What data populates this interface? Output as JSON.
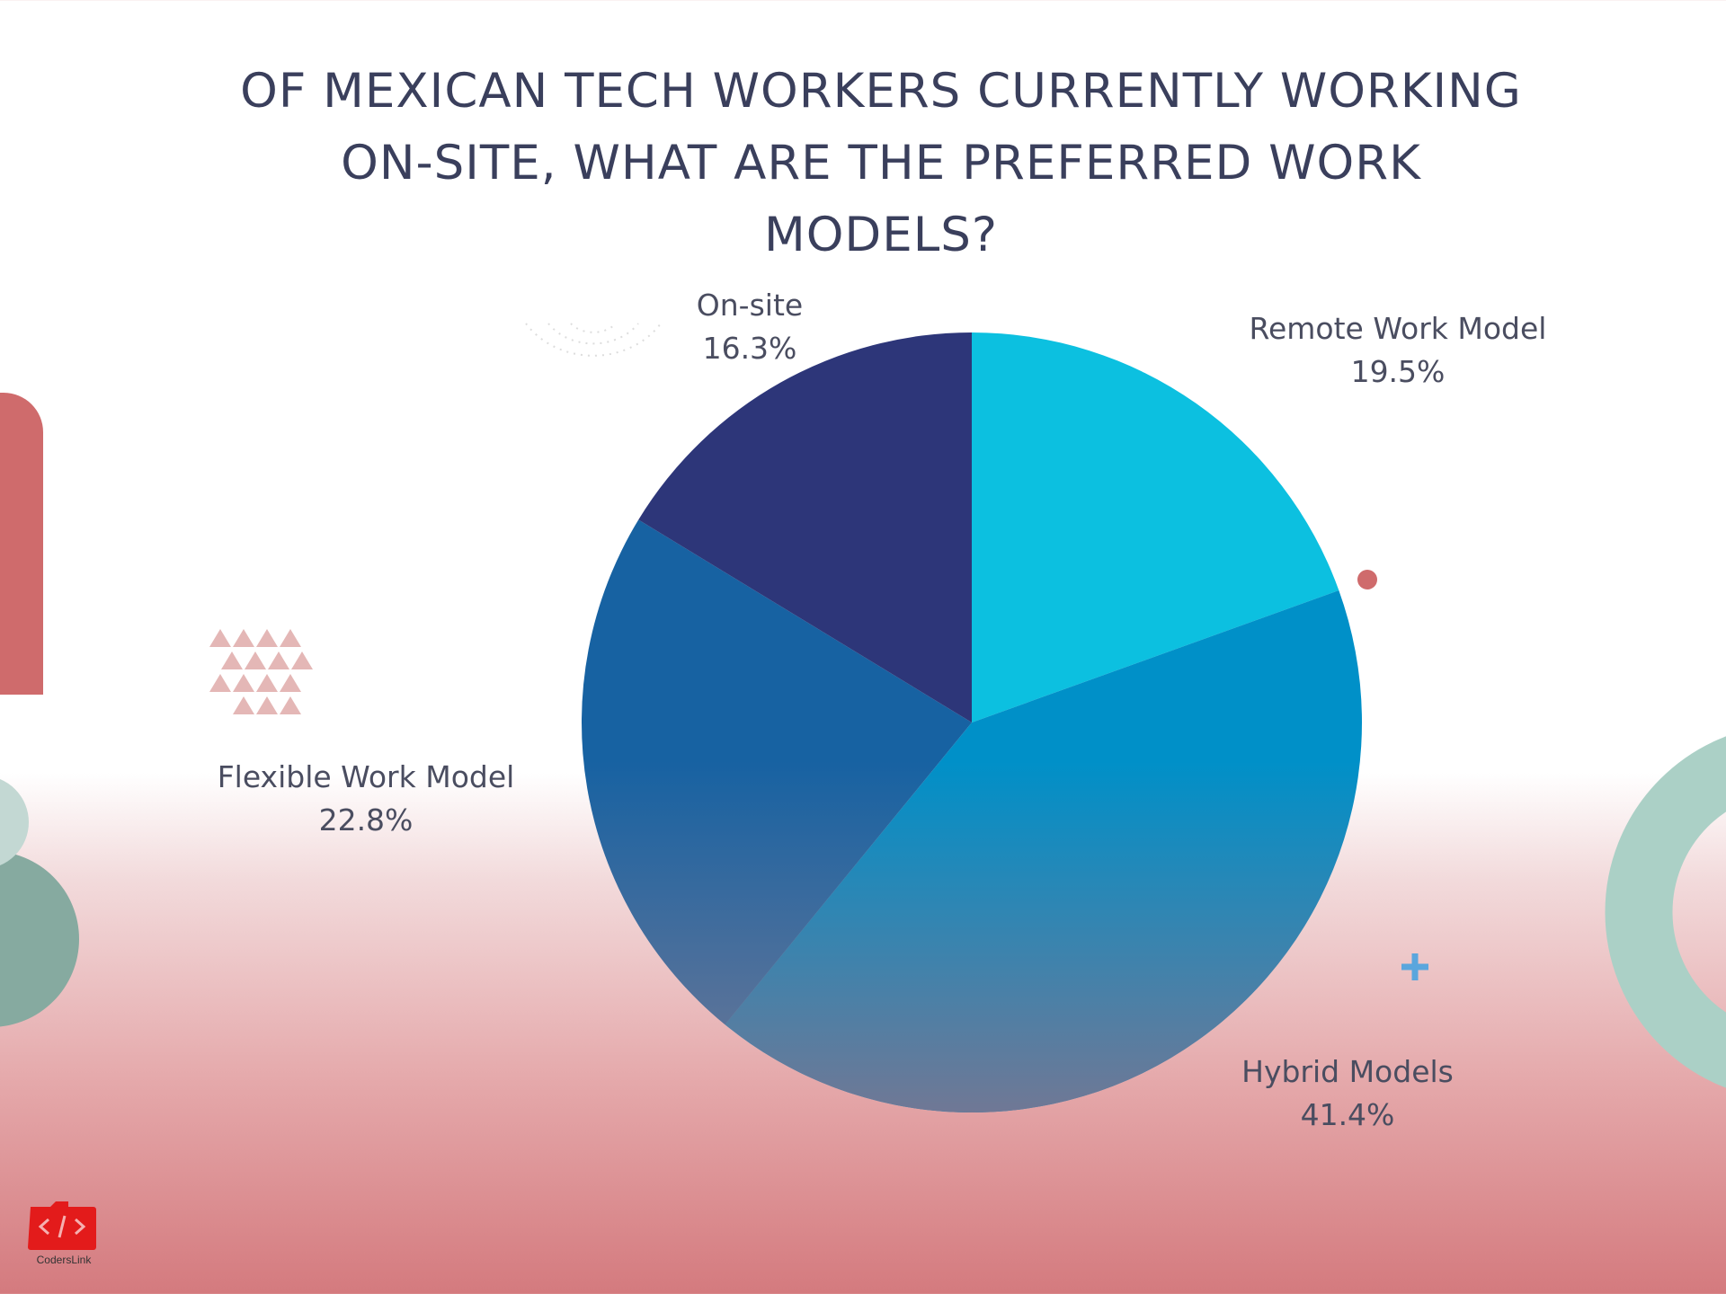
{
  "chart_data": {
    "type": "pie",
    "title": "OF MEXICAN TECH WORKERS CURRENTLY WORKING ON-SITE, WHAT ARE THE PREFERRED WORK MODELS?",
    "title_lines": [
      "OF MEXICAN TECH WORKERS CURRENTLY WORKING",
      "ON-SITE, WHAT ARE THE PREFERRED WORK",
      "MODELS?"
    ],
    "start": "12 o'clock, clockwise",
    "slices": [
      {
        "label": "Remote Work  Model",
        "value": 19.5,
        "display": "19.5%",
        "color": "#0cc0e0"
      },
      {
        "label": "Hybrid Models",
        "value": 41.4,
        "display": "41.4%",
        "color": "#0090c8"
      },
      {
        "label": "Flexible Work Model",
        "value": 22.8,
        "display": "22.8%",
        "color": "#1762a2"
      },
      {
        "label": "On-site",
        "value": 16.3,
        "display": "16.3%",
        "color": "#2d3679"
      }
    ]
  },
  "brand": {
    "logo_text": "CodersLink",
    "logo_color": "#e31b1b"
  }
}
